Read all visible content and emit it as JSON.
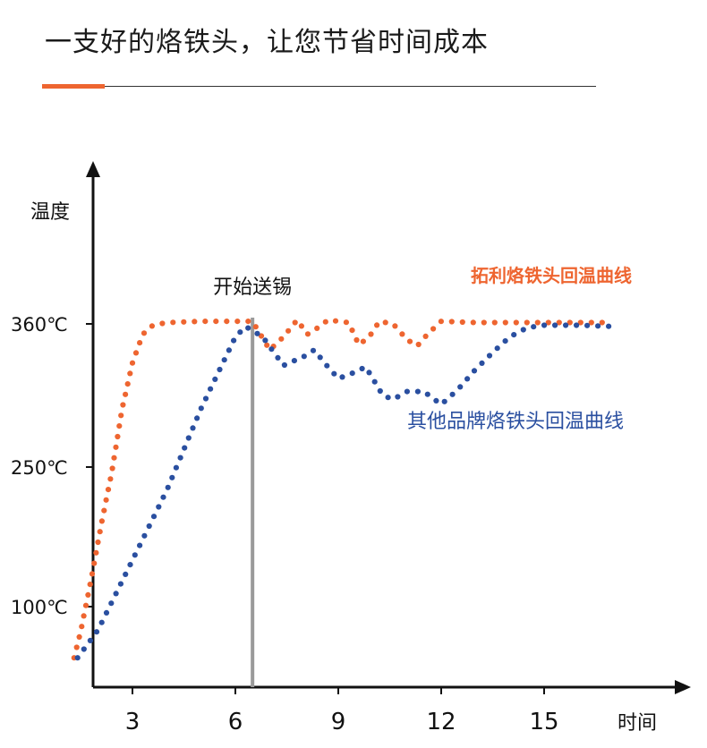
{
  "header": {
    "title": "一支好的烙铁头，让您节省时间成本"
  },
  "colors": {
    "accent": "#ee6530",
    "series_tuoli": "#ee6530",
    "series_other": "#2a4fa0",
    "axis": "#111111",
    "marker": "#9a9a9a"
  },
  "chart_data": {
    "type": "line",
    "ylabel": "温度",
    "xlabel": "时间",
    "x_ticks": [
      3,
      6,
      9,
      12,
      15
    ],
    "y_ticks": [
      {
        "value": 100,
        "label": "100℃"
      },
      {
        "value": 250,
        "label": "250℃"
      },
      {
        "value": 360,
        "label": "360℃"
      }
    ],
    "xlim": [
      1.2,
      17.5
    ],
    "ylim": [
      40,
      385
    ],
    "annotation": {
      "x": 6.5,
      "label": "开始送锡"
    },
    "series": [
      {
        "name": "拓利烙铁头回温曲线",
        "color": "#ee6530",
        "style": "dotted",
        "points": [
          [
            1.3,
            45
          ],
          [
            1.5,
            75
          ],
          [
            1.8,
            130
          ],
          [
            2.1,
            190
          ],
          [
            2.4,
            245
          ],
          [
            2.7,
            295
          ],
          [
            3.0,
            330
          ],
          [
            3.3,
            352
          ],
          [
            3.6,
            359
          ],
          [
            4.0,
            361
          ],
          [
            5.0,
            362
          ],
          [
            6.0,
            362
          ],
          [
            6.5,
            362
          ],
          [
            7.0,
            340
          ],
          [
            7.4,
            350
          ],
          [
            7.8,
            363
          ],
          [
            8.1,
            352
          ],
          [
            8.4,
            357
          ],
          [
            8.7,
            363
          ],
          [
            9.0,
            362
          ],
          [
            9.3,
            361
          ],
          [
            9.6,
            344
          ],
          [
            9.9,
            350
          ],
          [
            10.2,
            362
          ],
          [
            10.6,
            360
          ],
          [
            11.0,
            348
          ],
          [
            11.3,
            343
          ],
          [
            11.6,
            352
          ],
          [
            12.0,
            362
          ],
          [
            13.0,
            361
          ],
          [
            14.0,
            361
          ],
          [
            15.0,
            361
          ],
          [
            16.0,
            361
          ],
          [
            17.0,
            361
          ]
        ]
      },
      {
        "name": "其他品牌烙铁头回温曲线",
        "color": "#2a4fa0",
        "style": "dotted",
        "points": [
          [
            1.4,
            45
          ],
          [
            2.0,
            75
          ],
          [
            3.0,
            150
          ],
          [
            4.0,
            225
          ],
          [
            5.0,
            295
          ],
          [
            6.0,
            350
          ],
          [
            6.3,
            358
          ],
          [
            6.8,
            350
          ],
          [
            7.4,
            328
          ],
          [
            8.0,
            335
          ],
          [
            8.3,
            340
          ],
          [
            8.6,
            330
          ],
          [
            9.0,
            318
          ],
          [
            9.4,
            322
          ],
          [
            9.8,
            327
          ],
          [
            10.3,
            305
          ],
          [
            10.6,
            302
          ],
          [
            11.0,
            308
          ],
          [
            11.5,
            308
          ],
          [
            12.0,
            298
          ],
          [
            12.5,
            310
          ],
          [
            13.0,
            325
          ],
          [
            13.5,
            338
          ],
          [
            14.0,
            350
          ],
          [
            14.5,
            357
          ],
          [
            15.0,
            359
          ],
          [
            16.0,
            359
          ],
          [
            17.0,
            358
          ]
        ]
      }
    ]
  }
}
